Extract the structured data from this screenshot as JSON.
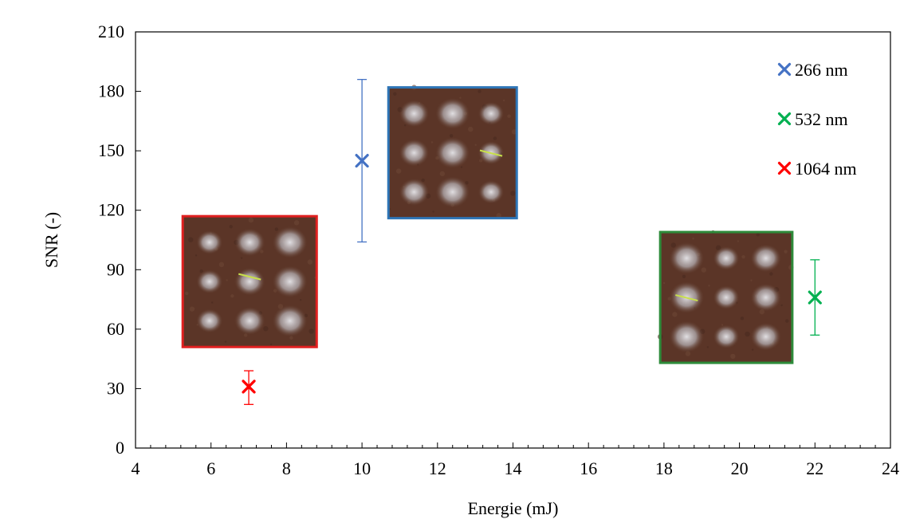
{
  "chart_data": {
    "type": "scatter",
    "title": "",
    "xlabel": "Energie (mJ)",
    "ylabel": "SNR (-)",
    "xlim": [
      4,
      24
    ],
    "ylim": [
      0,
      210
    ],
    "x_ticks": [
      4,
      6,
      8,
      10,
      12,
      14,
      16,
      18,
      20,
      22,
      24
    ],
    "y_ticks": [
      0,
      30,
      60,
      90,
      120,
      150,
      180,
      210
    ],
    "grid": false,
    "legend_position": "top-right",
    "series": [
      {
        "name": "266 nm",
        "color": "#4472C4",
        "marker": "x",
        "x": [
          10
        ],
        "y": [
          145
        ],
        "err_low": [
          104
        ],
        "err_high": [
          186
        ]
      },
      {
        "name": "532 nm",
        "color": "#00B050",
        "marker": "x",
        "x": [
          22
        ],
        "y": [
          76
        ],
        "err_low": [
          57
        ],
        "err_high": [
          95
        ]
      },
      {
        "name": "1064 nm",
        "color": "#FF0000",
        "marker": "x",
        "x": [
          7
        ],
        "y": [
          31
        ],
        "err_low": [
          22
        ],
        "err_high": [
          39
        ]
      }
    ],
    "inset_images": [
      {
        "name": "1064 nm sample micrograph",
        "border_color": "#E02020",
        "x_range": [
          5.25,
          8.8
        ],
        "y_range": [
          51,
          117
        ]
      },
      {
        "name": "266 nm sample micrograph",
        "border_color": "#2E75B6",
        "x_range": [
          10.7,
          14.1
        ],
        "y_range": [
          116,
          182
        ]
      },
      {
        "name": "532 nm sample micrograph",
        "border_color": "#2E8B3A",
        "x_range": [
          17.9,
          21.4
        ],
        "y_range": [
          43,
          109
        ]
      }
    ]
  }
}
